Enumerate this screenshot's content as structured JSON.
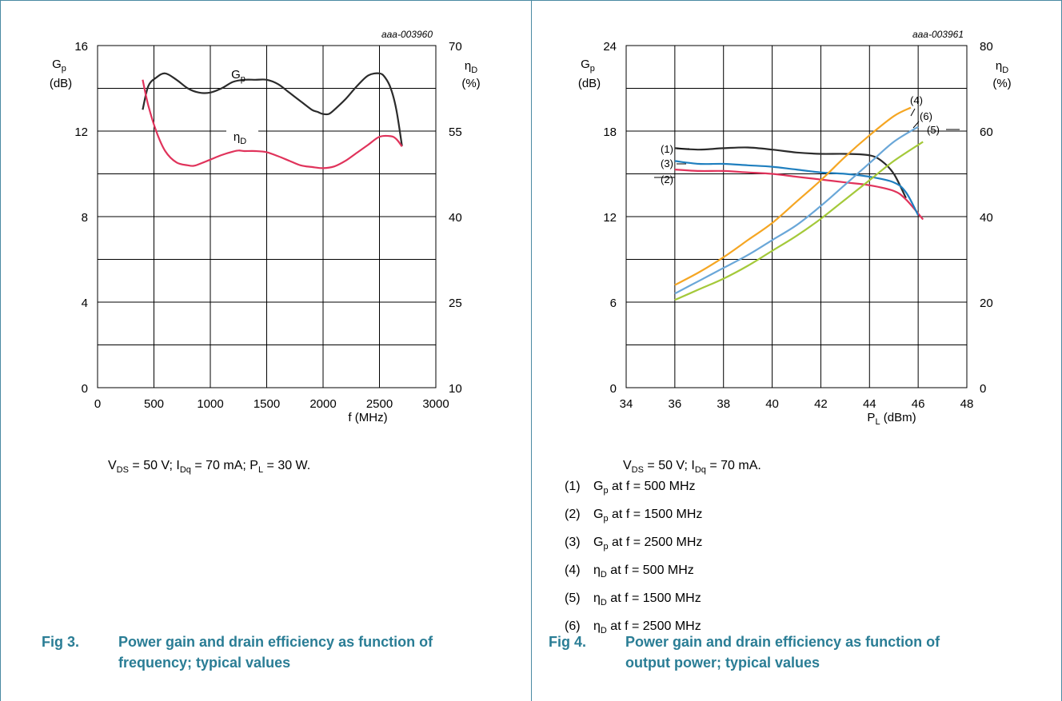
{
  "colors": {
    "frame": "#4a8aa3",
    "caption": "#2a7d95",
    "grid": "#000000",
    "gp": "#2b2b2b",
    "eta": "#e0335b"
  },
  "fig3": {
    "code": "aaa-003960",
    "y_left_label": "G",
    "y_left_sub": "p",
    "y_left_unit": "(dB)",
    "y_right_label": "η",
    "y_right_sub": "D",
    "y_right_unit": "(%)",
    "x_label": "f (MHz)",
    "conditions": "V<sub>DS</sub> = 50 V; I<sub>Dq</sub> = 70 mA; P<sub>L</sub> = 30 W.",
    "caption_num": "Fig 3.",
    "caption_line1": "Power gain and drain efficiency as function of",
    "caption_line2": "frequency; typical values",
    "curve_label_gp": "G",
    "curve_label_gp_sub": "p",
    "curve_label_eta": "η",
    "curve_label_eta_sub": "D"
  },
  "fig4": {
    "code": "aaa-003961",
    "y_left_label": "G",
    "y_left_sub": "p",
    "y_left_unit": "(dB)",
    "y_right_label": "η",
    "y_right_sub": "D",
    "y_right_unit": "(%)",
    "x_label": "P",
    "x_label_sub": "L",
    "x_label_unit": " (dBm)",
    "conditions": "V<sub>DS</sub> = 50 V; I<sub>Dq</sub> = 70 mA.",
    "caption_num": "Fig 4.",
    "caption_line1": "Power gain and drain efficiency as function of",
    "caption_line2": "output power; typical values",
    "legend": [
      {
        "num": "(1)",
        "sym": "G",
        "sub": "p",
        "text": " at f = 500 MHz"
      },
      {
        "num": "(2)",
        "sym": "G",
        "sub": "p",
        "text": " at f = 1500 MHz"
      },
      {
        "num": "(3)",
        "sym": "G",
        "sub": "p",
        "text": " at f = 2500 MHz"
      },
      {
        "num": "(4)",
        "sym": "η",
        "sub": "D",
        "text": " at f = 500 MHz"
      },
      {
        "num": "(5)",
        "sym": "η",
        "sub": "D",
        "text": " at f = 1500 MHz"
      },
      {
        "num": "(6)",
        "sym": "η",
        "sub": "D",
        "text": " at f = 2500 MHz"
      }
    ]
  },
  "chart_data": [
    {
      "type": "line",
      "x_label": "f (MHz)",
      "y_left_label": "Gp (dB)",
      "y_right_label": "ηD (%)",
      "xlim": [
        0,
        3000
      ],
      "ylim_left": [
        0,
        16
      ],
      "ylim_right": [
        10,
        70
      ],
      "x_ticks": [
        0,
        500,
        1000,
        1500,
        2000,
        2500,
        3000
      ],
      "y_left_ticks": [
        0,
        4,
        8,
        12,
        16
      ],
      "y_right_ticks": [
        10,
        25,
        40,
        55,
        70
      ],
      "grid": true,
      "series": [
        {
          "name": "Gp",
          "axis": "left",
          "color": "#2b2b2b",
          "x": [
            400,
            450,
            520,
            600,
            700,
            800,
            900,
            1000,
            1100,
            1200,
            1300,
            1400,
            1500,
            1600,
            1700,
            1800,
            1900,
            1950,
            2000,
            2050,
            2100,
            2200,
            2300,
            2400,
            2500,
            2550,
            2600,
            2650,
            2700
          ],
          "y": [
            13.0,
            14.1,
            14.5,
            14.7,
            14.4,
            14.0,
            13.8,
            13.8,
            14.0,
            14.3,
            14.4,
            14.4,
            14.4,
            14.2,
            13.8,
            13.4,
            13.0,
            12.9,
            12.8,
            12.8,
            13.0,
            13.5,
            14.1,
            14.6,
            14.7,
            14.5,
            14.0,
            13.0,
            11.3
          ]
        },
        {
          "name": "ηD",
          "axis": "right",
          "color": "#e0335b",
          "x": [
            400,
            450,
            520,
            600,
            700,
            800,
            850,
            900,
            1000,
            1100,
            1200,
            1250,
            1300,
            1400,
            1500,
            1600,
            1700,
            1800,
            1900,
            2000,
            2100,
            2200,
            2300,
            2400,
            2500,
            2600,
            2650,
            2700
          ],
          "y": [
            64.0,
            59.5,
            55.0,
            51.5,
            49.5,
            49.0,
            48.9,
            49.2,
            50.0,
            50.8,
            51.4,
            51.6,
            51.5,
            51.5,
            51.3,
            50.6,
            49.8,
            49.0,
            48.7,
            48.5,
            48.8,
            49.8,
            51.2,
            52.6,
            54.0,
            54.1,
            53.6,
            52.3
          ]
        }
      ]
    },
    {
      "type": "line",
      "x_label": "PL (dBm)",
      "y_left_label": "Gp (dB)",
      "y_right_label": "ηD (%)",
      "xlim": [
        34,
        48
      ],
      "ylim_left": [
        0,
        24
      ],
      "ylim_right": [
        0,
        80
      ],
      "x_ticks": [
        34,
        36,
        38,
        40,
        42,
        44,
        46,
        48
      ],
      "y_left_ticks": [
        0,
        6,
        12,
        18,
        24
      ],
      "y_right_ticks": [
        0,
        20,
        40,
        60,
        80
      ],
      "grid": true,
      "series": [
        {
          "name": "(1)",
          "axis": "left",
          "color": "#2b2b2b",
          "x": [
            36,
            37,
            38,
            39,
            40,
            41,
            42,
            43,
            44,
            44.5,
            45,
            45.5
          ],
          "y": [
            16.8,
            16.7,
            16.8,
            16.85,
            16.7,
            16.5,
            16.4,
            16.4,
            16.3,
            15.9,
            15.0,
            13.3
          ]
        },
        {
          "name": "(2)",
          "axis": "left",
          "color": "#e0335b",
          "x": [
            36,
            37,
            38,
            39,
            40,
            41,
            42,
            43,
            44,
            45,
            45.5,
            46.2
          ],
          "y": [
            15.3,
            15.2,
            15.2,
            15.1,
            15.0,
            14.8,
            14.6,
            14.4,
            14.2,
            13.8,
            13.2,
            11.8
          ]
        },
        {
          "name": "(3)",
          "axis": "left",
          "color": "#1f7fbf",
          "x": [
            36,
            37,
            38,
            39,
            40,
            41,
            42,
            43,
            44,
            45,
            45.5,
            46.0
          ],
          "y": [
            15.9,
            15.7,
            15.7,
            15.6,
            15.5,
            15.3,
            15.1,
            15.0,
            14.8,
            14.4,
            13.7,
            12.1
          ]
        },
        {
          "name": "(4)",
          "axis": "right",
          "color": "#f5a623",
          "x": [
            36,
            37,
            38,
            39,
            40,
            41,
            42,
            43,
            44,
            45,
            45.7
          ],
          "y": [
            24.0,
            27.0,
            30.5,
            34.5,
            38.5,
            43.5,
            48.5,
            54.0,
            59.0,
            63.5,
            65.5
          ]
        },
        {
          "name": "(5)",
          "axis": "right",
          "color": "#a4c93a",
          "x": [
            36,
            37,
            38,
            39,
            40,
            41,
            42,
            43,
            44,
            45,
            46.2
          ],
          "y": [
            20.5,
            23.0,
            25.5,
            28.5,
            32.0,
            35.5,
            39.5,
            44.0,
            48.5,
            53.0,
            57.5
          ]
        },
        {
          "name": "(6)",
          "axis": "right",
          "color": "#6aa7d8",
          "x": [
            36,
            37,
            38,
            39,
            40,
            41,
            42,
            43,
            44,
            45,
            46.0
          ],
          "y": [
            22.0,
            25.0,
            28.0,
            31.0,
            34.5,
            38.0,
            42.5,
            47.5,
            52.5,
            57.5,
            61.0
          ]
        }
      ]
    }
  ]
}
